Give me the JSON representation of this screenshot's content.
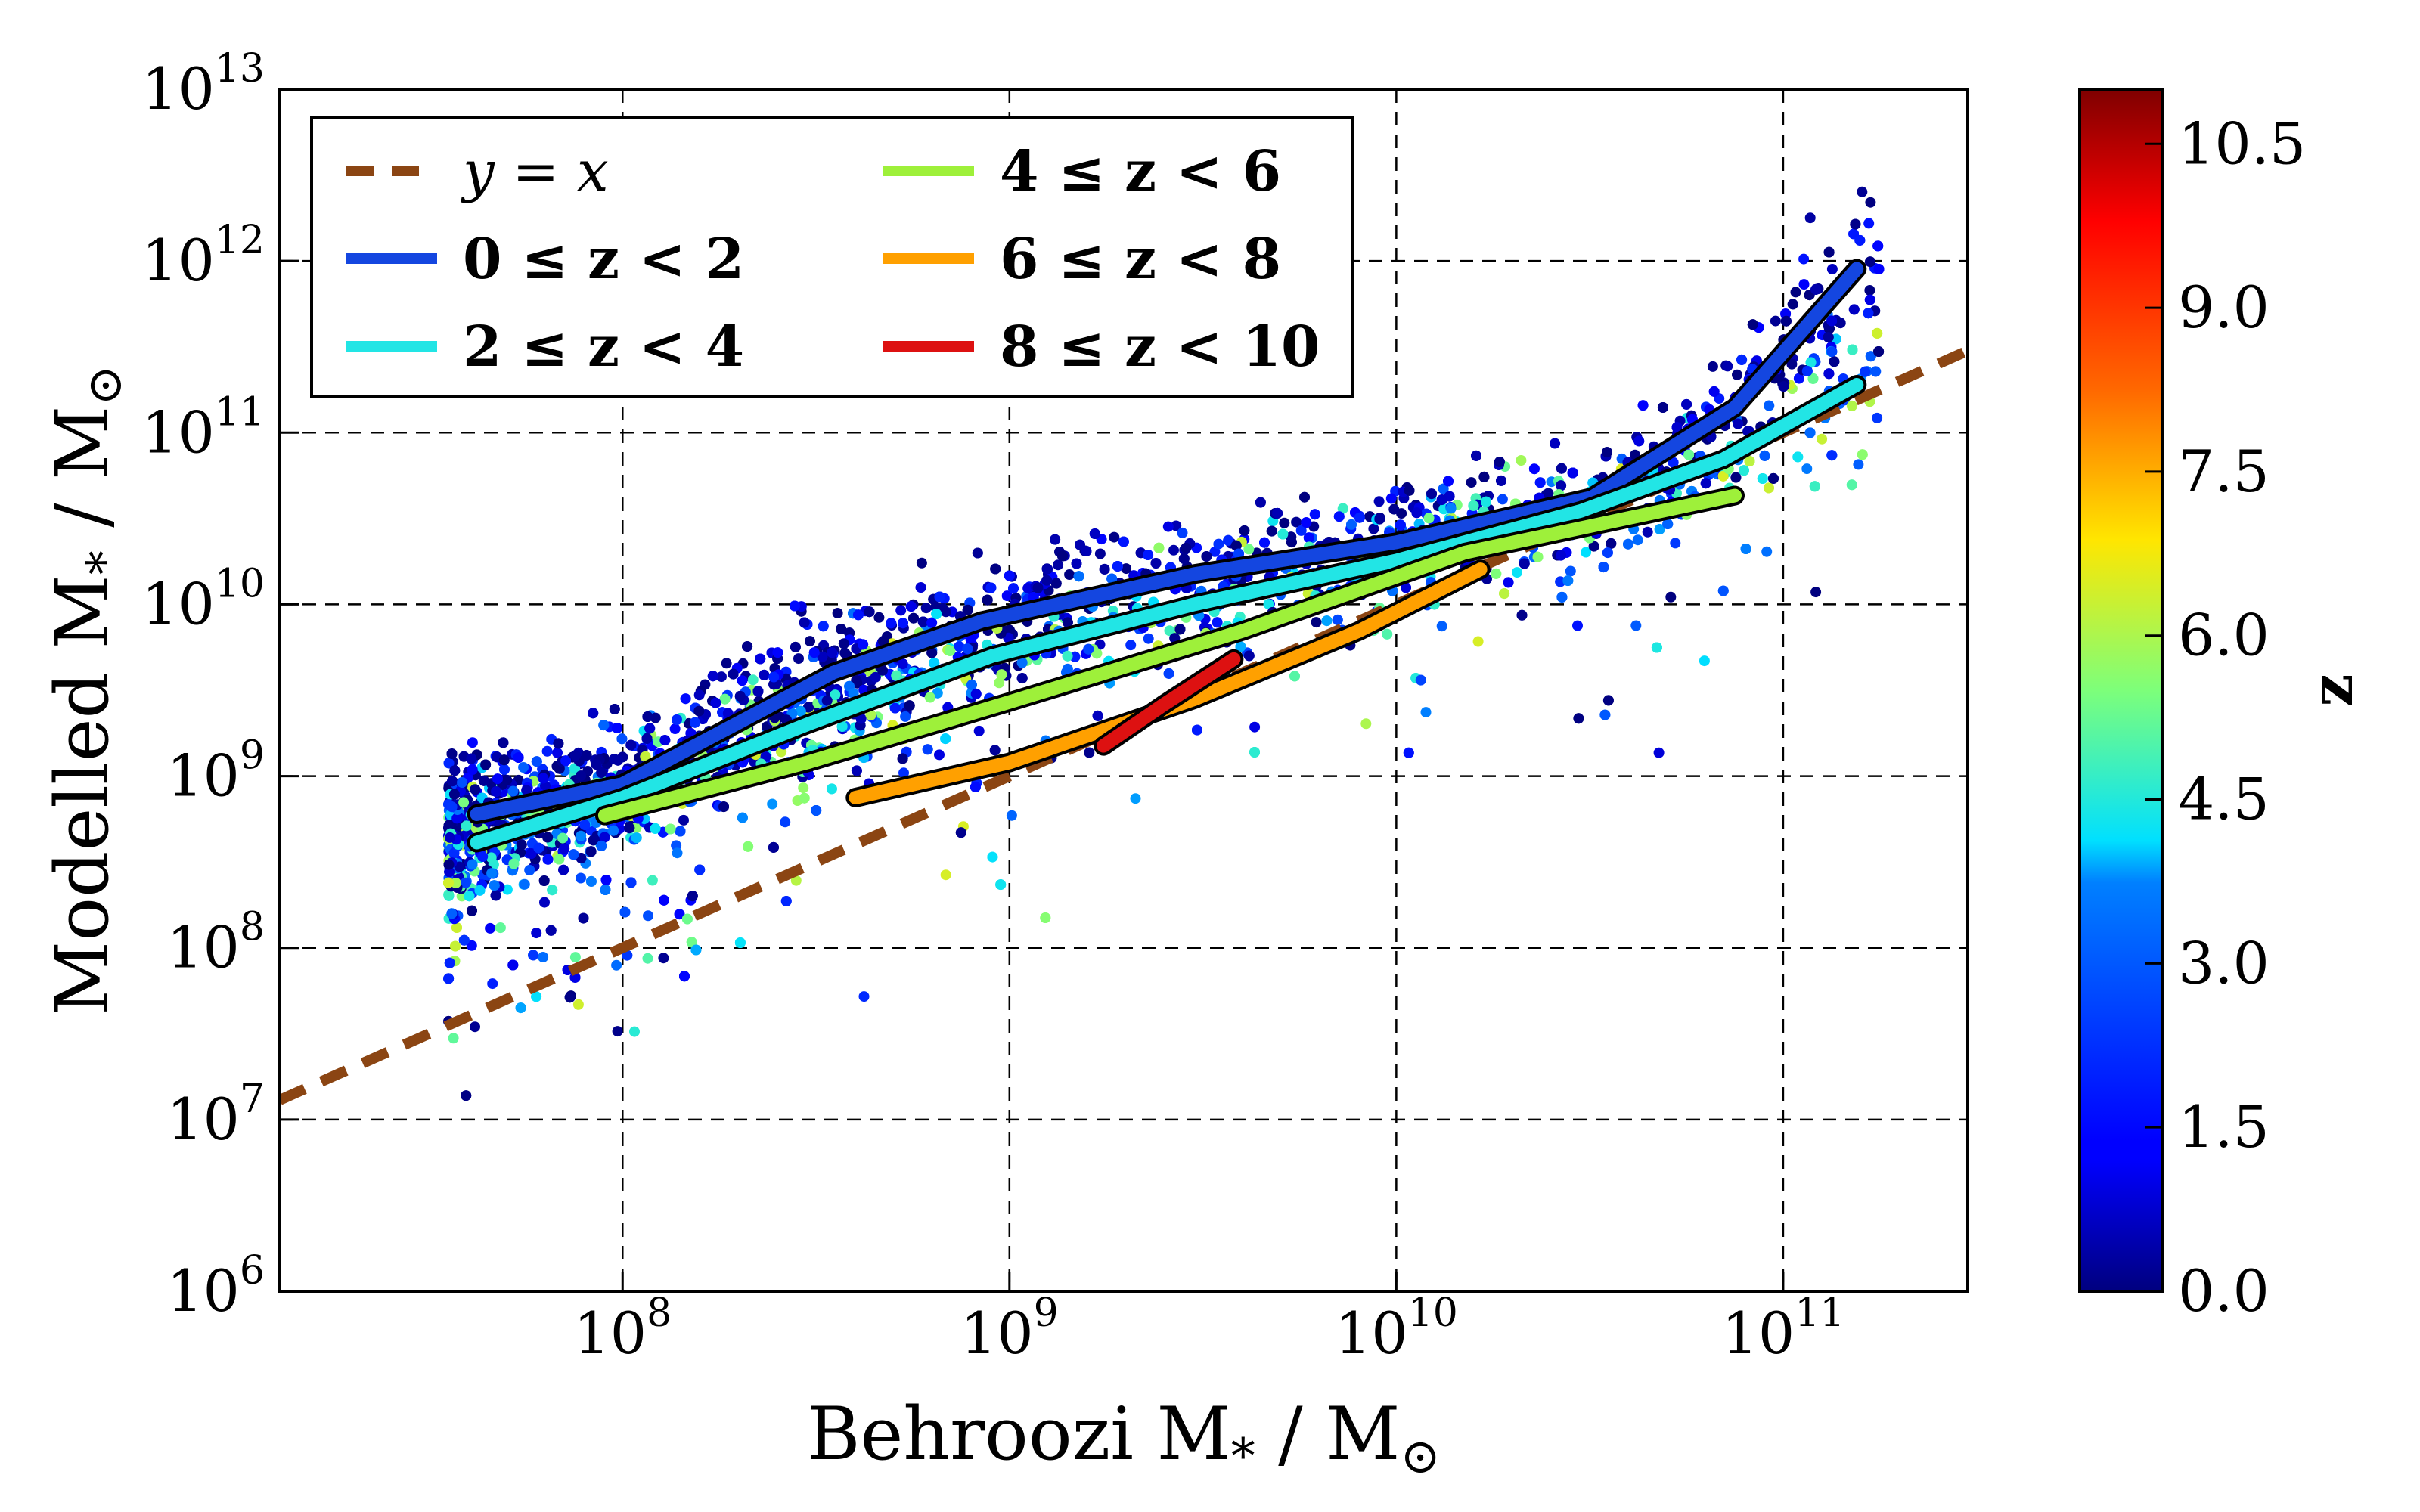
{
  "chart_data": {
    "type": "scatter",
    "xlabel": "Behroozi M",
    "xlabel_sub": "*",
    "xlabel_tail": " / M",
    "xlabel_tail_sub": "⊙",
    "ylabel": "Modelled M",
    "ylabel_sub": "*",
    "ylabel_tail": " / M",
    "ylabel_tail_sub": "⊙",
    "xscale": "log",
    "yscale": "log",
    "xlim": [
      13000000.0,
      300000000000.0
    ],
    "ylim": [
      1000000.0,
      10000000000000.0
    ],
    "grid": true,
    "legend_position": "upper-left",
    "x_ticks": [
      {
        "base": "10",
        "exp": "8",
        "value": 100000000.0
      },
      {
        "base": "10",
        "exp": "9",
        "value": 1000000000.0
      },
      {
        "base": "10",
        "exp": "10",
        "value": 10000000000.0
      },
      {
        "base": "10",
        "exp": "11",
        "value": 100000000000.0
      }
    ],
    "y_ticks": [
      {
        "base": "10",
        "exp": "6",
        "value": 1000000.0
      },
      {
        "base": "10",
        "exp": "7",
        "value": 10000000.0
      },
      {
        "base": "10",
        "exp": "8",
        "value": 100000000.0
      },
      {
        "base": "10",
        "exp": "9",
        "value": 1000000000.0
      },
      {
        "base": "10",
        "exp": "10",
        "value": 10000000000.0
      },
      {
        "base": "10",
        "exp": "11",
        "value": 100000000000.0
      },
      {
        "base": "10",
        "exp": "12",
        "value": 1000000000000.0
      },
      {
        "base": "10",
        "exp": "13",
        "value": 10000000000000.0
      }
    ],
    "colorbar": {
      "label": "z",
      "range": [
        0.0,
        11.0
      ],
      "ticks": [
        "0.0",
        "1.5",
        "3.0",
        "4.5",
        "6.0",
        "7.5",
        "9.0",
        "10.5"
      ],
      "tick_values": [
        0.0,
        1.5,
        3.0,
        4.5,
        6.0,
        7.5,
        9.0,
        10.5
      ]
    },
    "series": [
      {
        "name": "y = x",
        "style": "dashed",
        "color": "#8b4513",
        "x": [
          13000000.0,
          300000000000.0
        ],
        "y": [
          13000000.0,
          300000000000.0
        ]
      },
      {
        "name": "0 ≤ z < 2",
        "color": "#1446e0",
        "x": [
          42000000.0,
          100000000.0,
          350000000.0,
          850000000.0,
          3000000000.0,
          10000000000.0,
          32000000000.0,
          75000000000.0,
          155000000000.0
        ],
        "y": [
          600000000.0,
          900000000.0,
          4000000000.0,
          8000000000.0,
          15000000000.0,
          23000000000.0,
          42000000000.0,
          140000000000.0,
          900000000000.0
        ]
      },
      {
        "name": "2 ≤ z < 4",
        "color": "#22e5e5",
        "x": [
          42000000.0,
          100000000.0,
          300000000.0,
          900000000.0,
          3000000000.0,
          10000000000.0,
          30000000000.0,
          70000000000.0,
          155000000000.0
        ],
        "y": [
          410000000.0,
          750000000.0,
          2000000000.0,
          5000000000.0,
          10000000000.0,
          18000000000.0,
          35000000000.0,
          70000000000.0,
          190000000000.0
        ]
      },
      {
        "name": "4 ≤ z < 6",
        "color": "#9ef03a",
        "x": [
          90000000.0,
          300000000.0,
          1000000000.0,
          4000000000.0,
          15000000000.0,
          75000000000.0
        ],
        "y": [
          590000000.0,
          1200000000.0,
          2700000000.0,
          7000000000.0,
          20000000000.0,
          43000000000.0
        ]
      },
      {
        "name": "6 ≤ z < 8",
        "color": "#ffa000",
        "x": [
          400000000.0,
          1000000000.0,
          3000000000.0,
          8000000000.0,
          16500000000.0
        ],
        "y": [
          750000000.0,
          1200000000.0,
          2800000000.0,
          7000000000.0,
          16000000000.0
        ]
      },
      {
        "name": "8 ≤ z < 10",
        "color": "#dd1111",
        "x": [
          1750000000.0,
          2500000000.0,
          3800000000.0
        ],
        "y": [
          1500000000.0,
          2600000000.0,
          4800000000.0
        ]
      }
    ],
    "legend": [
      {
        "label": "y = x",
        "color": "#8b4513",
        "dashed": true
      },
      {
        "label": "0 ≤ z < 2",
        "color": "#1446e0",
        "dashed": false
      },
      {
        "label": "2 ≤ z < 4",
        "color": "#22e5e5",
        "dashed": false
      },
      {
        "label": "4 ≤ z < 6",
        "color": "#9ef03a",
        "dashed": false
      },
      {
        "label": "6 ≤ z < 8",
        "color": "#ffa000",
        "dashed": false
      },
      {
        "label": "8 ≤ z < 10",
        "color": "#dd1111",
        "dashed": false
      }
    ]
  }
}
